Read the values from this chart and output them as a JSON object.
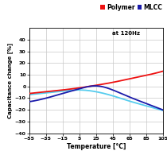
{
  "title": "",
  "xlabel": "Temperature [°C]",
  "ylabel": "Capacitance change [%]",
  "annotation": "at 120Hz",
  "xlim": [
    -55,
    105
  ],
  "ylim": [
    -40,
    50
  ],
  "xticks": [
    -55,
    -35,
    -15,
    5,
    25,
    45,
    65,
    85,
    105
  ],
  "yticks": [
    -40,
    -30,
    -20,
    -10,
    0,
    10,
    20,
    30,
    40
  ],
  "legend_labels": [
    "Polymer",
    "MLCC"
  ],
  "legend_colors": [
    "#ee1111",
    "#1a1aaa"
  ],
  "bg_color": "#ffffff",
  "grid_color": "#c8c8c8",
  "polymer_color": "#ee1111",
  "mlcc_dark_color": "#1a1aaa",
  "mlcc_light_color": "#55ccee",
  "polymer_x": [
    -55,
    -35,
    -15,
    5,
    25,
    45,
    65,
    85,
    105
  ],
  "polymer_y": [
    -6.0,
    -4.5,
    -3.0,
    -1.2,
    1.0,
    3.5,
    6.5,
    9.5,
    13.0
  ],
  "mlcc_dark_x": [
    -55,
    -35,
    -15,
    5,
    25,
    45,
    65,
    85,
    105
  ],
  "mlcc_dark_y": [
    -13.0,
    -10.0,
    -6.0,
    -2.0,
    0.5,
    -3.0,
    -9.0,
    -14.5,
    -20.0
  ],
  "mlcc_light_x": [
    -55,
    -35,
    -15,
    5,
    25,
    45,
    65,
    85,
    105
  ],
  "mlcc_light_y": [
    -7.0,
    -5.5,
    -4.0,
    -3.0,
    -4.5,
    -8.0,
    -12.5,
    -16.5,
    -20.5
  ]
}
